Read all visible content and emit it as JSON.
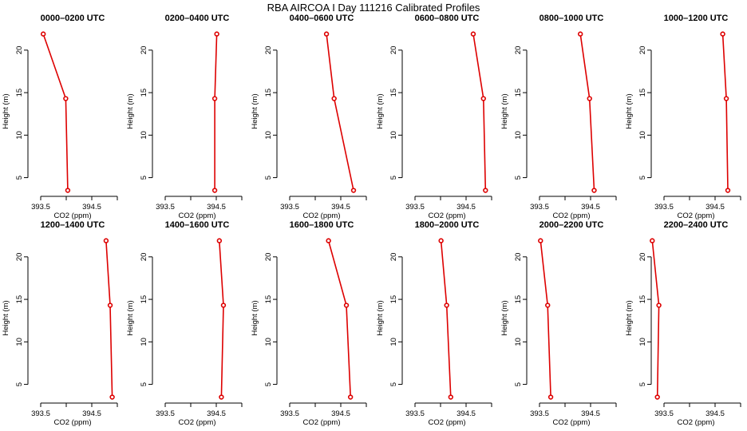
{
  "figure": {
    "title": "RBA AIRCOA I  Day 111216  Calibrated Profiles"
  },
  "chart_data": [
    {
      "type": "line",
      "title": "0000–0200 UTC",
      "xlabel": "CO2 (ppm)",
      "ylabel": "Height (m)",
      "xlim": [
        393.25,
        395.0
      ],
      "ylim": [
        2.8,
        22.8
      ],
      "xticks": [
        393.5,
        394.0,
        394.5,
        395.0
      ],
      "xticklabels": [
        "393.5",
        "",
        "394.5",
        ""
      ],
      "yticks": [
        5,
        10,
        15,
        20
      ],
      "x": [
        393.55,
        393.99,
        394.03
      ],
      "y": [
        21.9,
        14.3,
        3.5
      ]
    },
    {
      "type": "line",
      "title": "0200–0400 UTC",
      "xlabel": "CO2 (ppm)",
      "ylabel": "Height (m)",
      "xlim": [
        393.25,
        395.0
      ],
      "ylim": [
        2.8,
        22.8
      ],
      "xticks": [
        393.5,
        394.0,
        394.5,
        395.0
      ],
      "xticklabels": [
        "393.5",
        "",
        "394.5",
        ""
      ],
      "yticks": [
        5,
        10,
        15,
        20
      ],
      "x": [
        394.51,
        394.47,
        394.47
      ],
      "y": [
        21.9,
        14.3,
        3.5
      ]
    },
    {
      "type": "line",
      "title": "0400–0600 UTC",
      "xlabel": "CO2 (ppm)",
      "ylabel": "Height (m)",
      "xlim": [
        393.25,
        395.0
      ],
      "ylim": [
        2.8,
        22.8
      ],
      "xticks": [
        393.5,
        394.0,
        394.5,
        395.0
      ],
      "xticklabels": [
        "393.5",
        "",
        "394.5",
        ""
      ],
      "yticks": [
        5,
        10,
        15,
        20
      ],
      "x": [
        394.22,
        394.37,
        394.75
      ],
      "y": [
        21.9,
        14.3,
        3.5
      ]
    },
    {
      "type": "line",
      "title": "0600–0800 UTC",
      "xlabel": "CO2 (ppm)",
      "ylabel": "Height (m)",
      "xlim": [
        393.25,
        395.0
      ],
      "ylim": [
        2.8,
        22.8
      ],
      "xticks": [
        393.5,
        394.0,
        394.5,
        395.0
      ],
      "xticklabels": [
        "393.5",
        "",
        "394.5",
        ""
      ],
      "yticks": [
        5,
        10,
        15,
        20
      ],
      "x": [
        394.64,
        394.84,
        394.88
      ],
      "y": [
        21.9,
        14.3,
        3.5
      ]
    },
    {
      "type": "line",
      "title": "0800–1000 UTC",
      "xlabel": "CO2 (ppm)",
      "ylabel": "Height (m)",
      "xlim": [
        393.25,
        395.0
      ],
      "ylim": [
        2.8,
        22.8
      ],
      "xticks": [
        393.5,
        394.0,
        394.5,
        395.0
      ],
      "xticklabels": [
        "393.5",
        "",
        "394.5",
        ""
      ],
      "yticks": [
        5,
        10,
        15,
        20
      ],
      "x": [
        394.3,
        394.48,
        394.57
      ],
      "y": [
        21.9,
        14.3,
        3.5
      ]
    },
    {
      "type": "line",
      "title": "1000–1200 UTC",
      "xlabel": "CO2 (ppm)",
      "ylabel": "Height (m)",
      "xlim": [
        393.25,
        395.0
      ],
      "ylim": [
        2.8,
        22.8
      ],
      "xticks": [
        393.5,
        394.0,
        394.5,
        395.0
      ],
      "xticklabels": [
        "393.5",
        "",
        "394.5",
        ""
      ],
      "yticks": [
        5,
        10,
        15,
        20
      ],
      "x": [
        394.65,
        394.72,
        394.75
      ],
      "y": [
        21.9,
        14.3,
        3.5
      ]
    },
    {
      "type": "line",
      "title": "1200–1400 UTC",
      "xlabel": "CO2 (ppm)",
      "ylabel": "Height (m)",
      "xlim": [
        393.25,
        395.0
      ],
      "ylim": [
        2.8,
        22.8
      ],
      "xticks": [
        393.5,
        394.0,
        394.5,
        395.0
      ],
      "xticklabels": [
        "393.5",
        "",
        "394.5",
        ""
      ],
      "yticks": [
        5,
        10,
        15,
        20
      ],
      "x": [
        394.78,
        394.86,
        394.9
      ],
      "y": [
        21.9,
        14.3,
        3.5
      ]
    },
    {
      "type": "line",
      "title": "1400–1600 UTC",
      "xlabel": "CO2 (ppm)",
      "ylabel": "Height (m)",
      "xlim": [
        393.25,
        395.0
      ],
      "ylim": [
        2.8,
        22.8
      ],
      "xticks": [
        393.5,
        394.0,
        394.5,
        395.0
      ],
      "xticklabels": [
        "393.5",
        "",
        "394.5",
        ""
      ],
      "yticks": [
        5,
        10,
        15,
        20
      ],
      "x": [
        394.56,
        394.64,
        394.6
      ],
      "y": [
        21.9,
        14.3,
        3.5
      ]
    },
    {
      "type": "line",
      "title": "1600–1800 UTC",
      "xlabel": "CO2 (ppm)",
      "ylabel": "Height (m)",
      "xlim": [
        393.25,
        395.0
      ],
      "ylim": [
        2.8,
        22.8
      ],
      "xticks": [
        393.5,
        394.0,
        394.5,
        395.0
      ],
      "xticklabels": [
        "393.5",
        "",
        "394.5",
        ""
      ],
      "yticks": [
        5,
        10,
        15,
        20
      ],
      "x": [
        394.26,
        394.61,
        394.69
      ],
      "y": [
        21.9,
        14.3,
        3.5
      ]
    },
    {
      "type": "line",
      "title": "1800–2000 UTC",
      "xlabel": "CO2 (ppm)",
      "ylabel": "Height (m)",
      "xlim": [
        393.25,
        395.0
      ],
      "ylim": [
        2.8,
        22.8
      ],
      "xticks": [
        393.5,
        394.0,
        394.5,
        395.0
      ],
      "xticklabels": [
        "393.5",
        "",
        "394.5",
        ""
      ],
      "yticks": [
        5,
        10,
        15,
        20
      ],
      "x": [
        394.01,
        394.12,
        394.2
      ],
      "y": [
        21.9,
        14.3,
        3.5
      ]
    },
    {
      "type": "line",
      "title": "2000–2200 UTC",
      "xlabel": "CO2 (ppm)",
      "ylabel": "Height (m)",
      "xlim": [
        393.25,
        395.0
      ],
      "ylim": [
        2.8,
        22.8
      ],
      "xticks": [
        393.5,
        394.0,
        394.5,
        395.0
      ],
      "xticklabels": [
        "393.5",
        "",
        "394.5",
        ""
      ],
      "yticks": [
        5,
        10,
        15,
        20
      ],
      "x": [
        393.52,
        393.66,
        393.72
      ],
      "y": [
        21.9,
        14.3,
        3.5
      ]
    },
    {
      "type": "line",
      "title": "2200–2400 UTC",
      "xlabel": "CO2 (ppm)",
      "ylabel": "Height (m)",
      "xlim": [
        393.25,
        395.0
      ],
      "ylim": [
        2.8,
        22.8
      ],
      "xticks": [
        393.5,
        394.0,
        394.5,
        395.0
      ],
      "xticklabels": [
        "393.5",
        "",
        "394.5",
        ""
      ],
      "yticks": [
        5,
        10,
        15,
        20
      ],
      "x": [
        393.27,
        393.4,
        393.37
      ],
      "y": [
        21.9,
        14.3,
        3.5
      ]
    }
  ]
}
